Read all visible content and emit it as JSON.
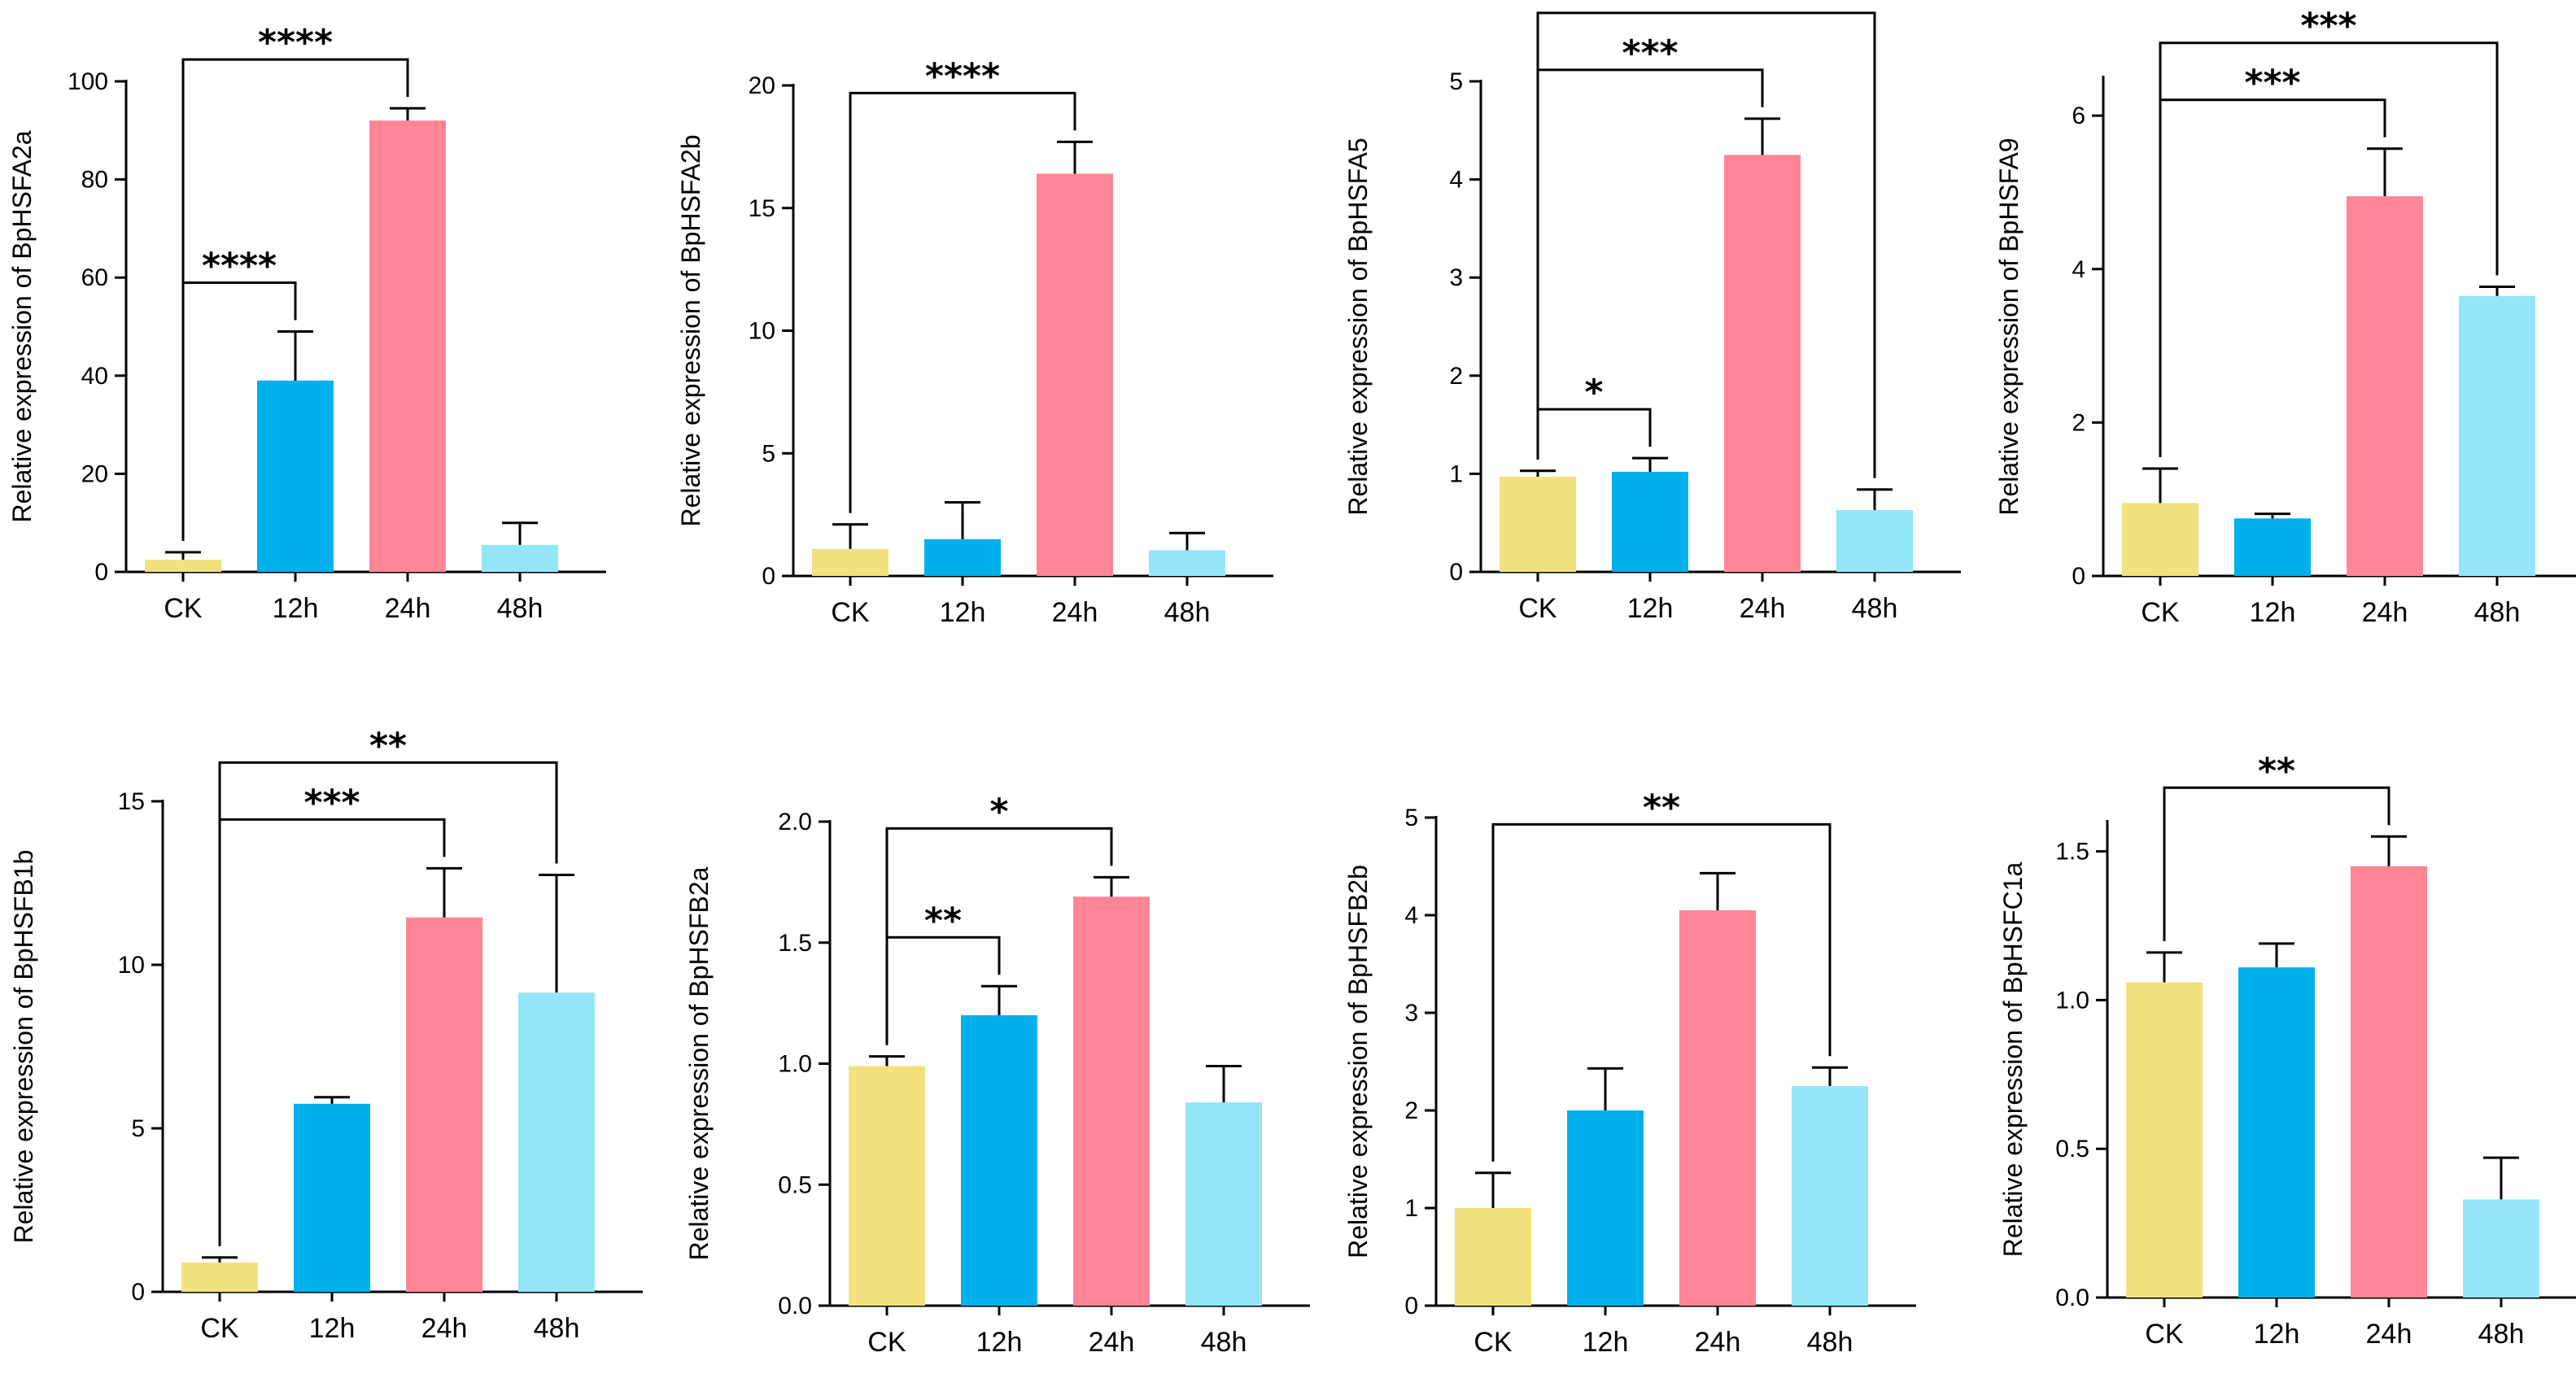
{
  "colors": [
    "#F1E27E",
    "#00B0EA",
    "#FF8597",
    "#93E6F8"
  ],
  "chart_data": [
    {
      "type": "bar",
      "categories": [
        "CK",
        "12h",
        "24h",
        "48h"
      ],
      "values": [
        2.5,
        39,
        92,
        5.5
      ],
      "errors": [
        1.5,
        10,
        2.5,
        4.5
      ],
      "ylabel": "Relative expression of BpHSFA2a",
      "ylim": [
        0,
        100
      ],
      "yticks": [
        "0",
        "20",
        "40",
        "60",
        "80",
        "100"
      ],
      "significance": [
        {
          "from": 0,
          "to": 1,
          "label": "****"
        },
        {
          "from": 0,
          "to": 2,
          "label": "****"
        }
      ]
    },
    {
      "type": "bar",
      "categories": [
        "CK",
        "12h",
        "24h",
        "48h"
      ],
      "values": [
        1.1,
        1.5,
        16.4,
        1.05
      ],
      "errors": [
        1.0,
        1.5,
        1.3,
        0.7
      ],
      "ylabel": "Relative expression of BpHSFA2b",
      "ylim": [
        0,
        20
      ],
      "yticks": [
        "0",
        "5",
        "10",
        "15",
        "20"
      ],
      "significance": [
        {
          "from": 0,
          "to": 2,
          "label": "****"
        }
      ]
    },
    {
      "type": "bar",
      "categories": [
        "CK",
        "12h",
        "24h",
        "48h"
      ],
      "values": [
        0.97,
        1.02,
        4.25,
        0.63
      ],
      "errors": [
        0.06,
        0.14,
        0.37,
        0.21
      ],
      "ylabel": "Relative expression of BpHSFA5",
      "ylim": [
        0,
        5
      ],
      "yticks": [
        "0",
        "1",
        "2",
        "3",
        "4",
        "5"
      ],
      "significance": [
        {
          "from": 0,
          "to": 1,
          "label": "*"
        },
        {
          "from": 0,
          "to": 2,
          "label": "***"
        },
        {
          "from": 0,
          "to": 3,
          "label": "*"
        }
      ]
    },
    {
      "type": "bar",
      "categories": [
        "CK",
        "12h",
        "24h",
        "48h"
      ],
      "values": [
        0.95,
        0.75,
        4.95,
        3.65
      ],
      "errors": [
        0.45,
        0.06,
        0.62,
        0.12
      ],
      "ylabel": "Relative expression of BpHSFA9",
      "ylim": [
        0,
        6.5
      ],
      "yticks": [
        "0",
        "2",
        "4",
        "6"
      ],
      "significance": [
        {
          "from": 0,
          "to": 2,
          "label": "***"
        },
        {
          "from": 0,
          "to": 3,
          "label": "***"
        }
      ]
    },
    {
      "type": "bar",
      "categories": [
        "CK",
        "12h",
        "24h",
        "48h"
      ],
      "values": [
        0.9,
        5.75,
        11.45,
        9.15
      ],
      "errors": [
        0.15,
        0.2,
        1.5,
        3.6
      ],
      "ylabel": "Relative expression of BpHSFB1b",
      "ylim": [
        0,
        15
      ],
      "yticks": [
        "0",
        "5",
        "10",
        "15"
      ],
      "significance": [
        {
          "from": 0,
          "to": 2,
          "label": "***"
        },
        {
          "from": 0,
          "to": 3,
          "label": "**"
        }
      ]
    },
    {
      "type": "bar",
      "categories": [
        "CK",
        "12h",
        "24h",
        "48h"
      ],
      "values": [
        0.99,
        1.2,
        1.69,
        0.84
      ],
      "errors": [
        0.04,
        0.12,
        0.08,
        0.15
      ],
      "ylabel": "Relative expression of BpHSFB2a",
      "ylim": [
        0,
        2.0
      ],
      "yticks": [
        "0.0",
        "0.5",
        "1.0",
        "1.5",
        "2.0"
      ],
      "significance": [
        {
          "from": 0,
          "to": 1,
          "label": "**"
        },
        {
          "from": 0,
          "to": 2,
          "label": "*"
        }
      ]
    },
    {
      "type": "bar",
      "categories": [
        "CK",
        "12h",
        "24h",
        "48h"
      ],
      "values": [
        1.0,
        2.0,
        4.05,
        2.25
      ],
      "errors": [
        0.36,
        0.43,
        0.38,
        0.19
      ],
      "ylabel": "Relative expression of BpHSFB2b",
      "ylim": [
        0,
        5
      ],
      "yticks": [
        "0",
        "1",
        "2",
        "3",
        "4",
        "5"
      ],
      "significance": [
        {
          "from": 0,
          "to": 3,
          "label": "**"
        }
      ]
    },
    {
      "type": "bar",
      "categories": [
        "CK",
        "12h",
        "24h",
        "48h"
      ],
      "values": [
        1.06,
        1.11,
        1.45,
        0.33
      ],
      "errors": [
        0.1,
        0.08,
        0.1,
        0.14
      ],
      "ylabel": "Relative expression of BpHSFC1a",
      "ylim": [
        0,
        1.6
      ],
      "yticks": [
        "0.0",
        "0.5",
        "1.0",
        "1.5"
      ],
      "significance": [
        {
          "from": 0,
          "to": 2,
          "label": "**"
        }
      ]
    }
  ]
}
